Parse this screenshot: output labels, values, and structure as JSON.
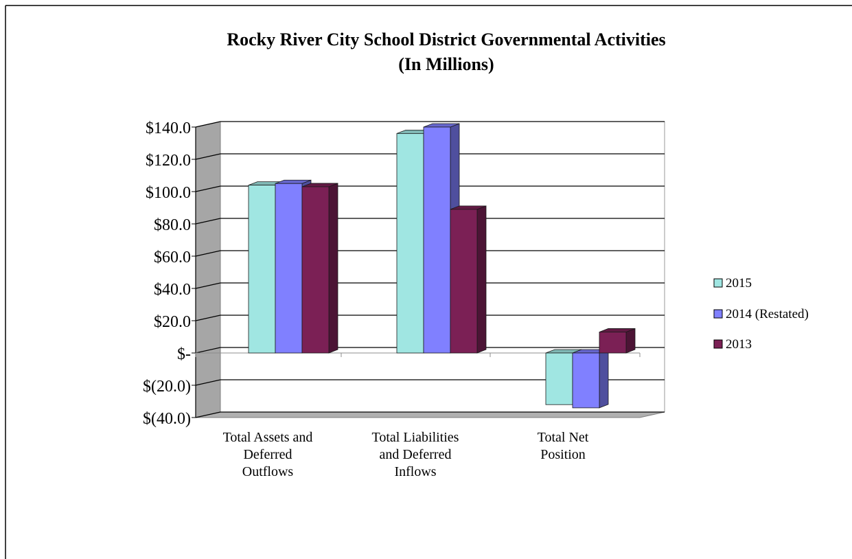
{
  "chart_data": {
    "type": "bar",
    "title": "Rocky River City School District Governmental Activities",
    "subtitle": "(In Millions)",
    "categories": [
      [
        "Total Assets and",
        "Deferred",
        "Outflows"
      ],
      [
        "Total Liabilities",
        "and Deferred",
        "Inflows"
      ],
      [
        "Total Net",
        "Position"
      ]
    ],
    "series": [
      {
        "name": "2015",
        "values": [
          104.0,
          136.0,
          -32.0
        ],
        "color": "#a0e6e2"
      },
      {
        "name": "2014 (Restated)",
        "values": [
          105.0,
          140.0,
          -34.0
        ],
        "color": "#8080ff"
      },
      {
        "name": "2013",
        "values": [
          103.0,
          89.0,
          13.0
        ],
        "color": "#7b2055"
      }
    ],
    "ylim": [
      -40,
      140
    ],
    "yticks": [
      {
        "value": 140,
        "label": "$140.0"
      },
      {
        "value": 120,
        "label": "$120.0"
      },
      {
        "value": 100,
        "label": "$100.0"
      },
      {
        "value": 80,
        "label": "$80.0"
      },
      {
        "value": 60,
        "label": "$60.0"
      },
      {
        "value": 40,
        "label": "$40.0"
      },
      {
        "value": 20,
        "label": "$20.0"
      },
      {
        "value": 0,
        "label": "$-"
      },
      {
        "value": -20,
        "label": "$(20.0)"
      },
      {
        "value": -40,
        "label": "$(40.0)"
      }
    ],
    "grid": true,
    "legend_position": "right",
    "style": "3d-clustered-column"
  }
}
